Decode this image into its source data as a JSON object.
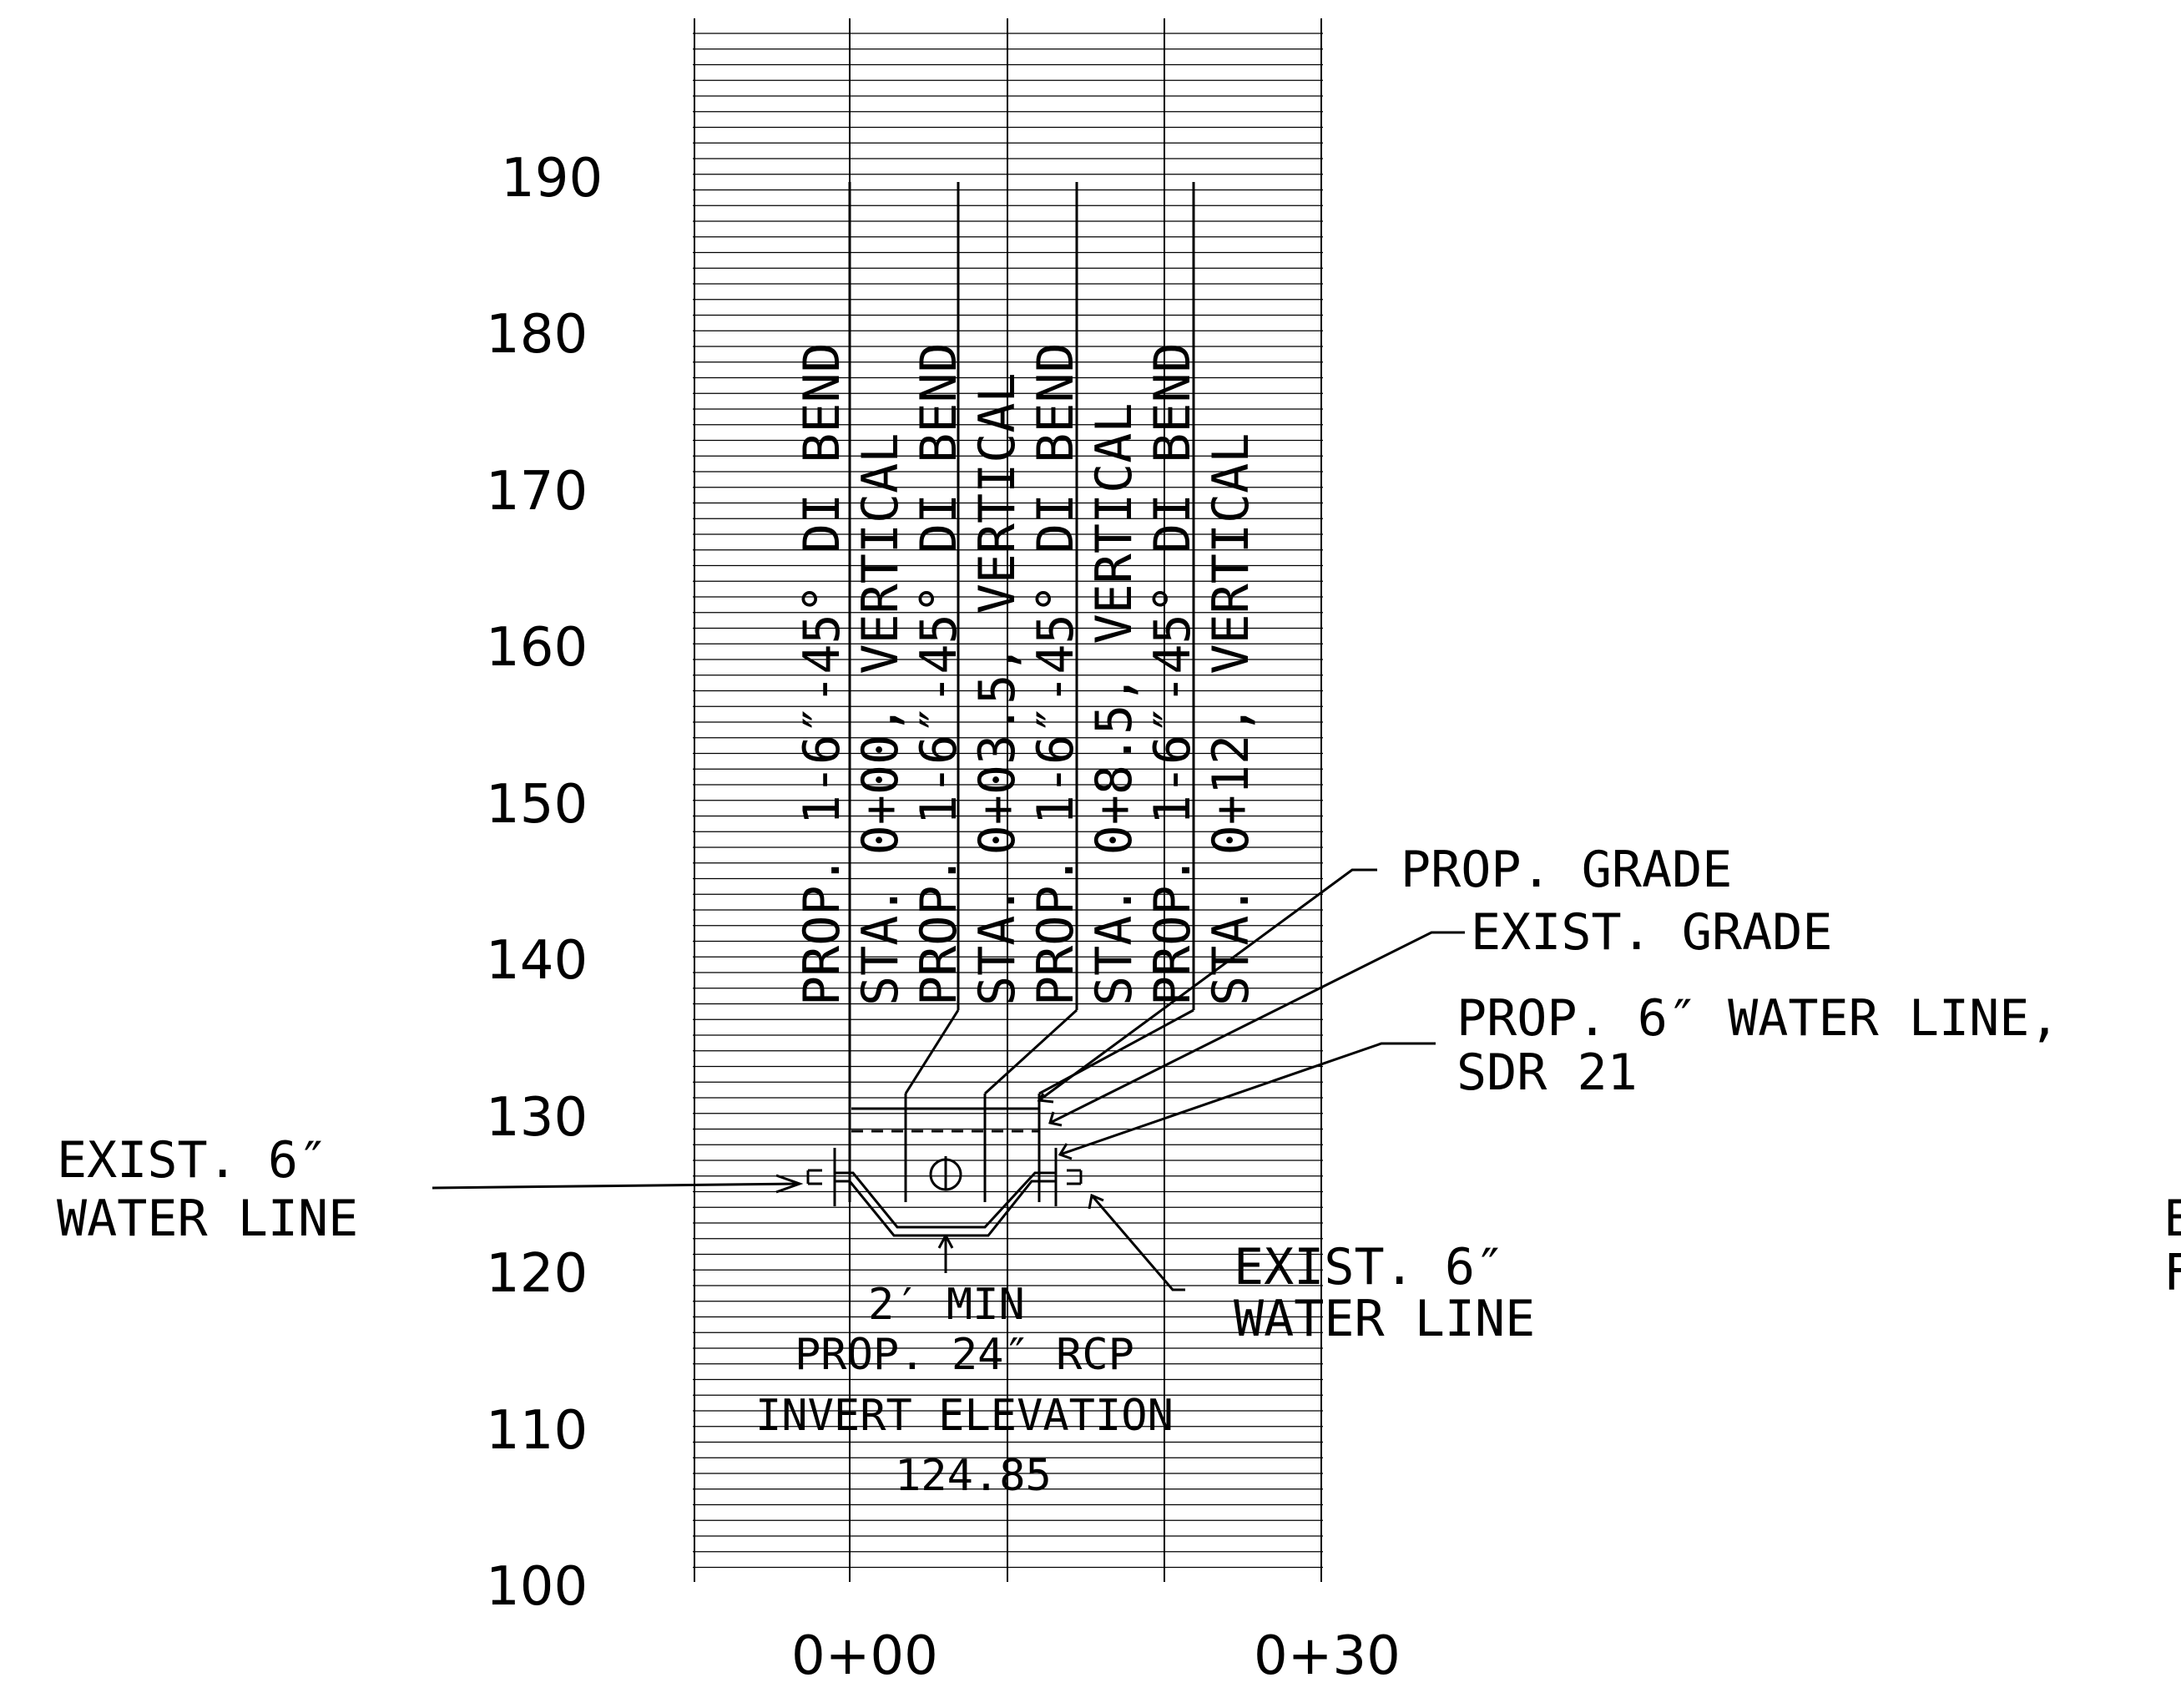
{
  "profile": {
    "y_axis": {
      "labels": [
        "190",
        "180",
        "170",
        "160",
        "150",
        "140",
        "130",
        "120",
        "110",
        "100"
      ]
    },
    "x_axis": {
      "labels": [
        "0+00",
        "0+30"
      ]
    },
    "vertical_callouts": [
      "PROP. 1-6″-45° DI BEND",
      "STA. 0+00, VERTICAL",
      "PROP. 1-6″-45° DI BEND",
      "STA. 0+03.5, VERTICAL",
      "PROP. 1-6″-45° DI BEND",
      "STA. 0+8.5, VERTICAL",
      "PROP. 1-6″-45° DI BEND",
      "STA. 0+12, VERTICAL"
    ],
    "callouts": {
      "prop_grade": "PROP. GRADE",
      "exist_grade": "EXIST. GRADE",
      "prop_water_line_1": "PROP. 6″ WATER LINE,",
      "prop_water_line_2": "SDR 21",
      "exist_water_left_1": "EXIST. 6″",
      "exist_water_left_2": "WATER LINE",
      "exist_water_right_1": "EXIST. 6″",
      "exist_water_right_2": "WATER LINE",
      "min_clearance": "2′ MIN",
      "rcp": "PROP. 24″ RCP",
      "invert_label": "INVERT ELEVATION",
      "invert_value": "124.85",
      "edge_1": "E",
      "edge_2": "F"
    }
  }
}
